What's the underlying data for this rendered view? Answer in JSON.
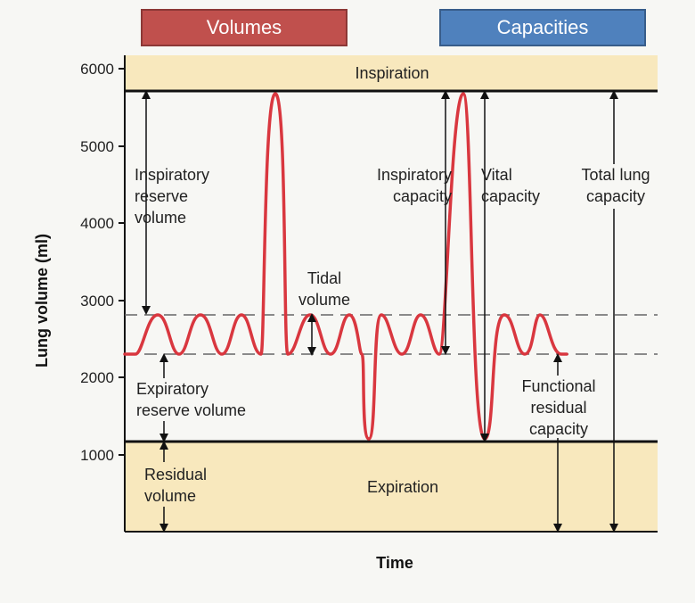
{
  "header": {
    "volumes_label": "Volumes",
    "capacities_label": "Capacities"
  },
  "colors": {
    "volumes": "#c0504d",
    "capacities": "#4f81bd",
    "zone_fill": "#f8e8bd",
    "trace": "#d9373f"
  },
  "axes": {
    "y_title": "Lung volume (ml)",
    "x_title": "Time",
    "y_ticks": [
      "6000",
      "5000",
      "4000",
      "3000",
      "2000",
      "1000"
    ]
  },
  "zones": {
    "inspiration": "Inspiration",
    "expiration": "Expiration"
  },
  "labels": {
    "irv": [
      "Inspiratory",
      "reserve",
      "volume"
    ],
    "tidal": [
      "Tidal",
      "volume"
    ],
    "erv": [
      "Expiratory",
      "reserve volume"
    ],
    "rv": [
      "Residual",
      "volume"
    ],
    "ic": [
      "Inspiratory",
      "capacity"
    ],
    "vc": [
      "Vital",
      "capacity"
    ],
    "tlc": [
      "Total lung",
      "capacity"
    ],
    "frc": [
      "Functional",
      "residual",
      "capacity"
    ]
  }
}
